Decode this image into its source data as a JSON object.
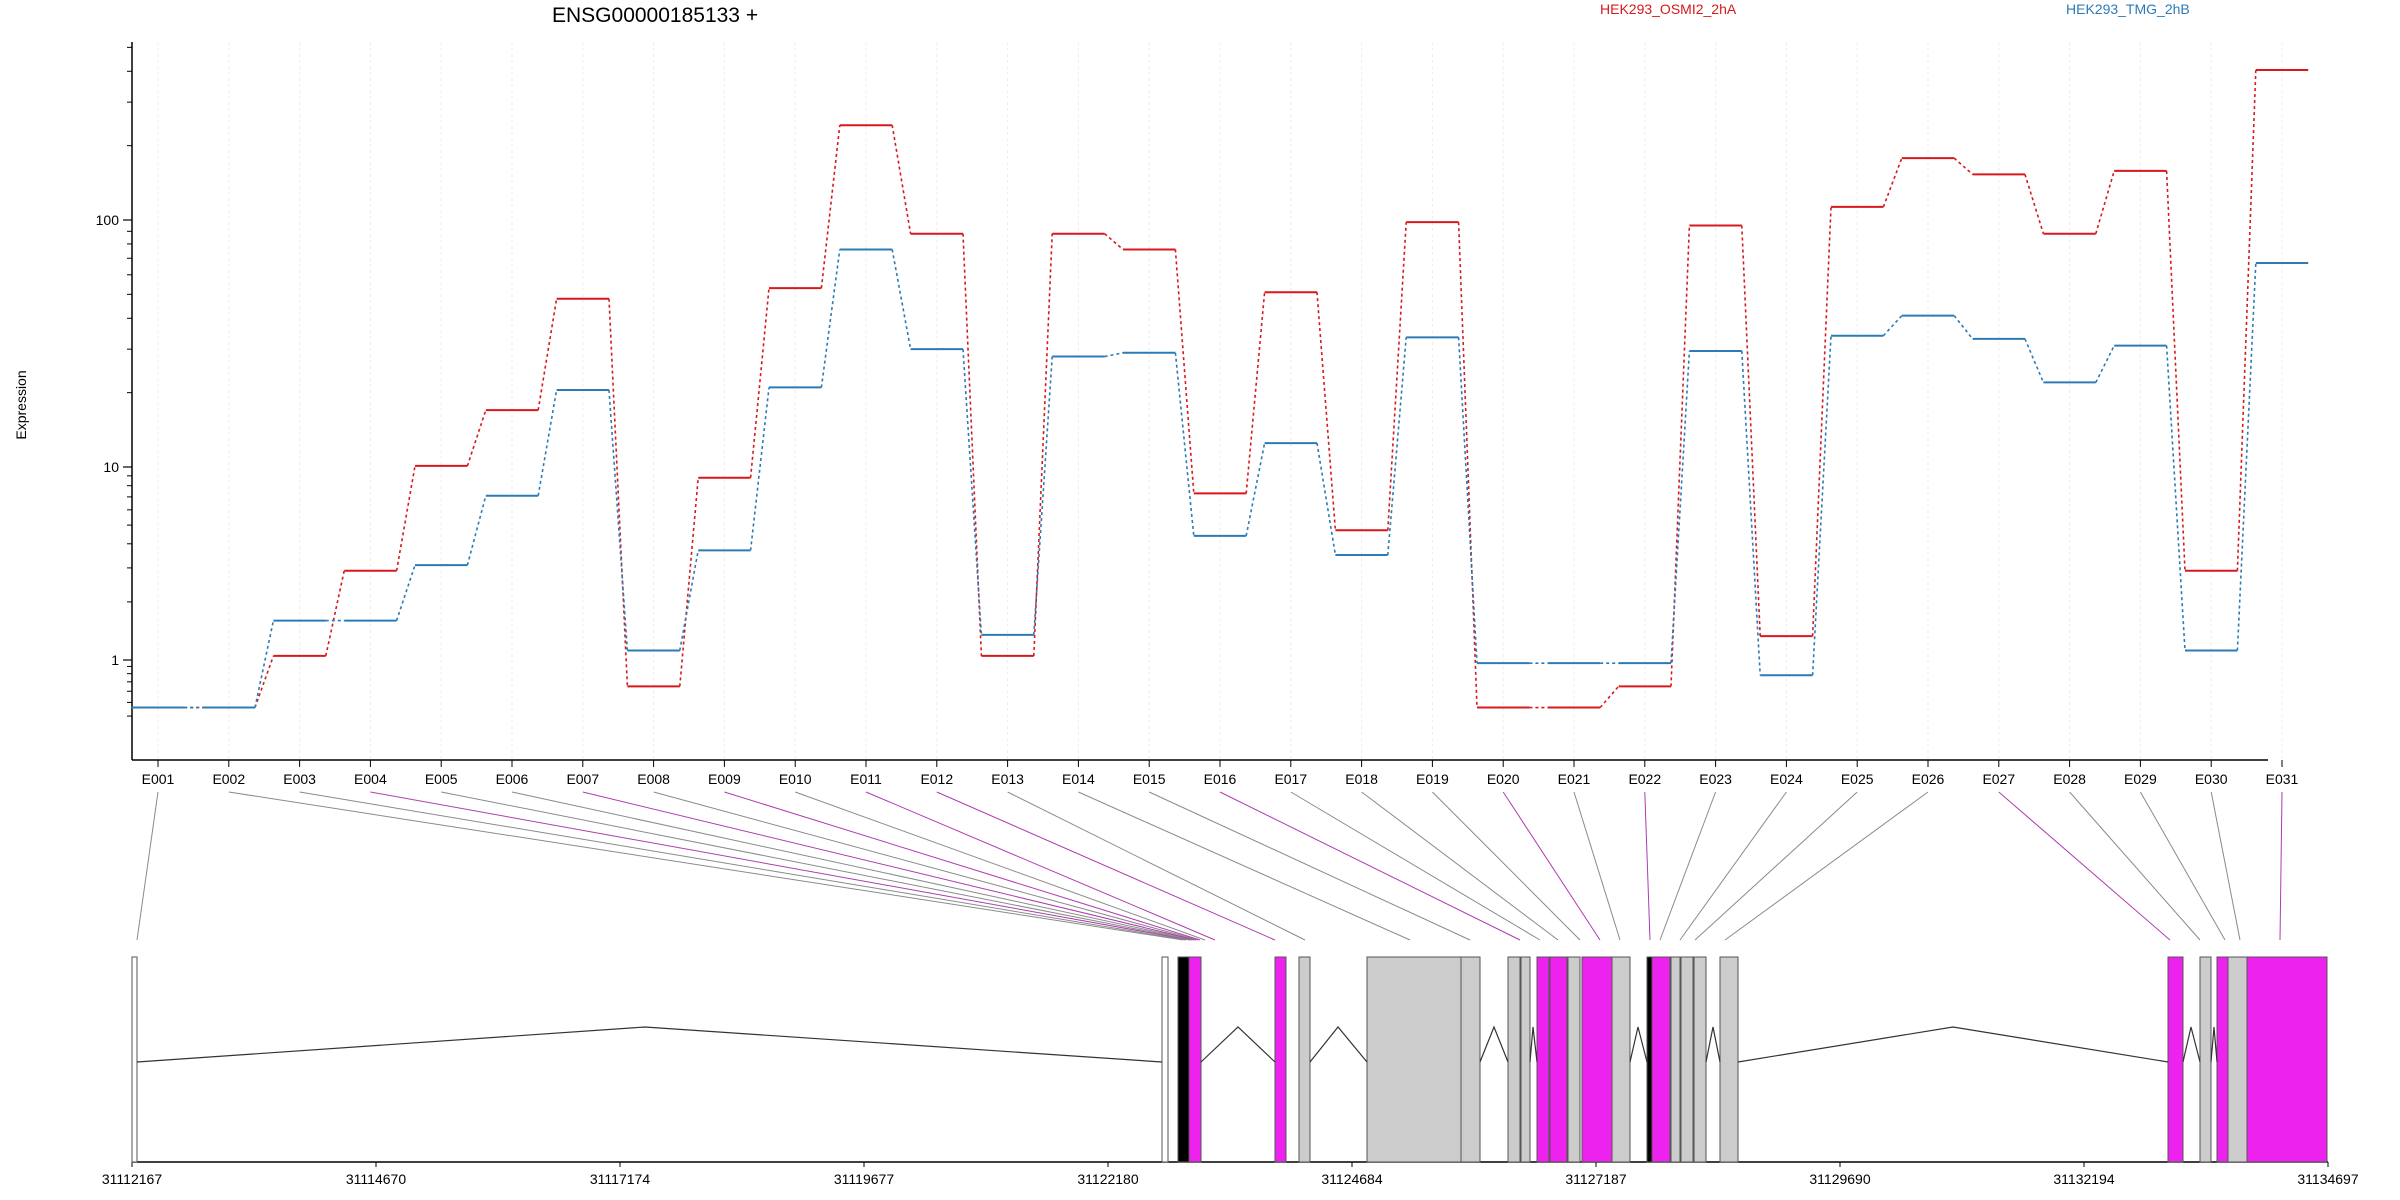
{
  "chart_data": {
    "type": "line",
    "title": "ENSG00000185133 +",
    "ylabel": "Expression",
    "yscale": "log",
    "ylim": [
      0.38,
      600
    ],
    "yticks": [
      1,
      10,
      100
    ],
    "ytick_labels": [
      "1",
      "10",
      "100"
    ],
    "grid": "vertical, per exon",
    "legend": "top-right",
    "categories": [
      "E001",
      "E002",
      "E003",
      "E004",
      "E005",
      "E006",
      "E007",
      "E008",
      "E009",
      "E010",
      "E011",
      "E012",
      "E013",
      "E014",
      "E015",
      "E016",
      "E017",
      "E018",
      "E019",
      "E020",
      "E021",
      "E022",
      "E023",
      "E024",
      "E025",
      "E026",
      "E027",
      "E028",
      "E029",
      "E030",
      "E031"
    ],
    "series": [
      {
        "name": "HEK293_OSMI2_2hA",
        "color": "#d7191c",
        "values": [
          0.46,
          0.46,
          1.05,
          2.9,
          10.1,
          17.0,
          48,
          0.65,
          8.8,
          53,
          242,
          88,
          1.05,
          88,
          76,
          7.3,
          51,
          4.7,
          98,
          0.46,
          0.46,
          0.65,
          95,
          1.33,
          113,
          178,
          153,
          88,
          158,
          2.9,
          405
        ]
      },
      {
        "name": "HEK293_TMG_2hB",
        "color": "#2c7bb6",
        "values": [
          0.46,
          0.46,
          1.6,
          1.6,
          3.1,
          7.1,
          20.5,
          1.12,
          3.7,
          21,
          76,
          30,
          1.35,
          28,
          29,
          4.4,
          12.5,
          3.5,
          33.5,
          0.95,
          0.95,
          0.95,
          29.5,
          0.78,
          34,
          41,
          33,
          22,
          31,
          1.12,
          67
        ]
      }
    ],
    "gene_model": {
      "coord_labels": [
        "31112167",
        "31114670",
        "31117174",
        "31119677",
        "31122180",
        "31124684",
        "31127187",
        "31129690",
        "31132194",
        "31134697"
      ],
      "exon_colors": {
        "fill_default": "#cccccc",
        "fill_highlight": "#ee22ee",
        "fill_white": "#ffffff",
        "outline": "#555555"
      }
    }
  }
}
